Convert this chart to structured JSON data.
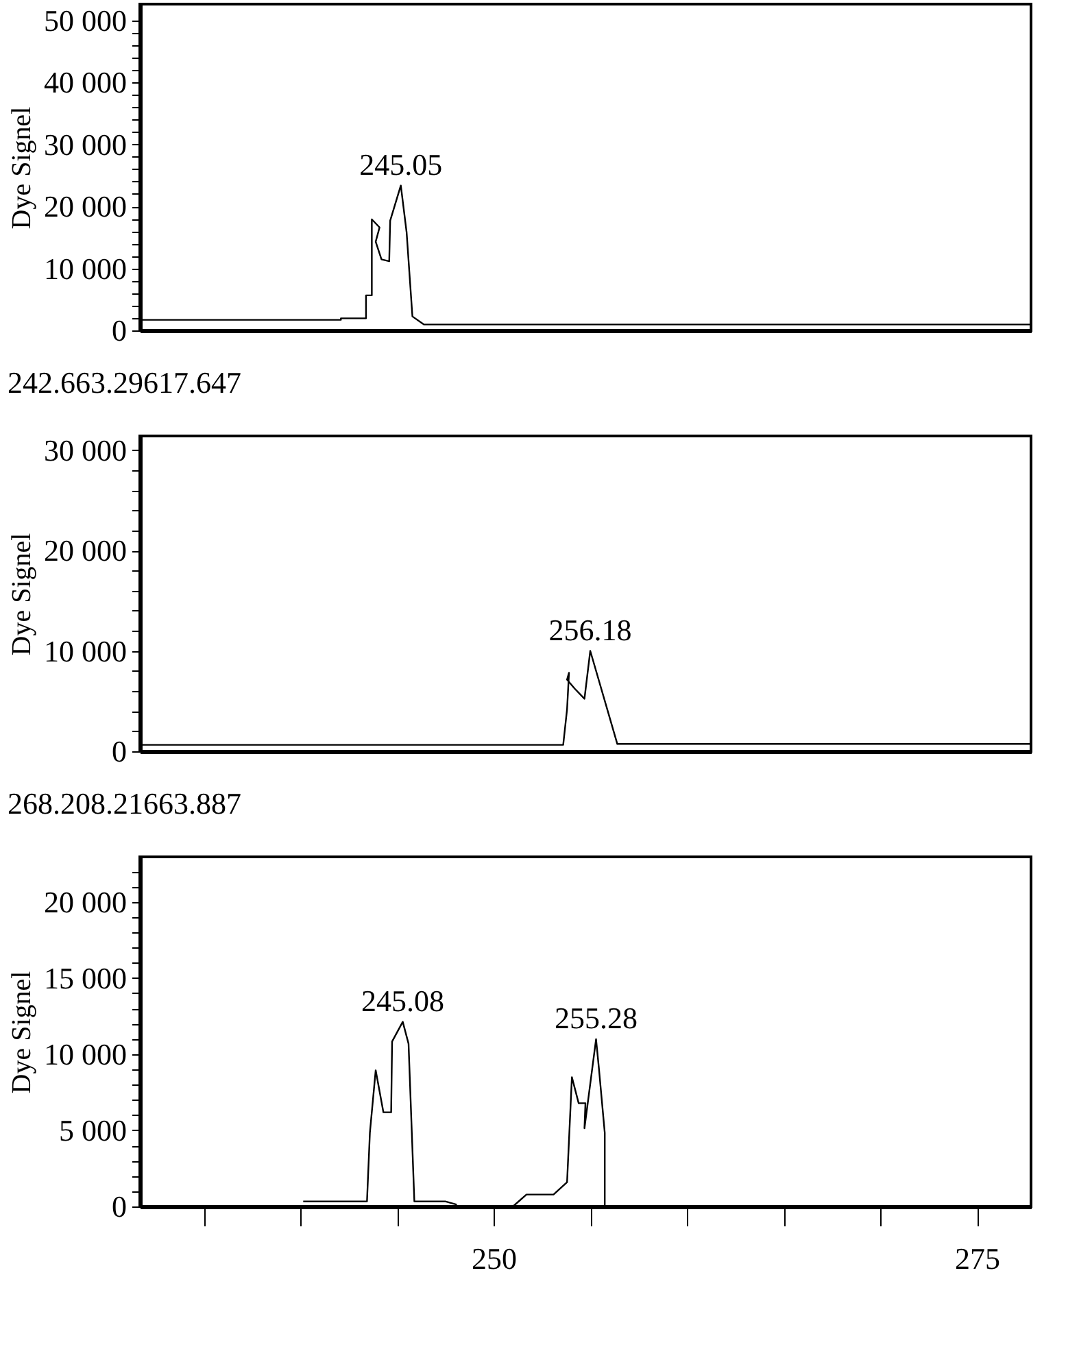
{
  "chart_data": [
    {
      "type": "line",
      "ylabel": "Dye Signel",
      "color": "#000000",
      "tick_labels": "y",
      "x": [
        231.7,
        242.1,
        242.1,
        243.4,
        243.4,
        243.7,
        243.7,
        244.1,
        243.9,
        244.2,
        244.6,
        244.65,
        245.2,
        245.5,
        245.8,
        246.4,
        277.8
      ],
      "values": [
        1700,
        1700,
        1950,
        1950,
        5650,
        5650,
        17900,
        16600,
        14300,
        11450,
        11150,
        17700,
        23350,
        15800,
        2250,
        950,
        950
      ],
      "xlim": [
        231.7,
        277.8
      ],
      "ylim": [
        0,
        52600
      ],
      "yticks": [
        0,
        {
          "value": 2000,
          "label": null
        },
        {
          "value": 4000,
          "label": null
        },
        {
          "value": 6000,
          "label": null
        },
        {
          "value": 8000,
          "label": null
        },
        {
          "value": 10000,
          "label": "10 000"
        },
        {
          "value": 12000,
          "label": null
        },
        {
          "value": 14000,
          "label": null
        },
        {
          "value": 16000,
          "label": null
        },
        {
          "value": 18000,
          "label": null
        },
        {
          "value": 20000,
          "label": "20 000"
        },
        {
          "value": 22000,
          "label": null
        },
        {
          "value": 24000,
          "label": null
        },
        {
          "value": 26000,
          "label": null
        },
        {
          "value": 28000,
          "label": null
        },
        {
          "value": 30000,
          "label": "30 000"
        },
        {
          "value": 32000,
          "label": null
        },
        {
          "value": 34000,
          "label": null
        },
        {
          "value": 36000,
          "label": null
        },
        {
          "value": 38000,
          "label": null
        },
        {
          "value": 40000,
          "label": "40 000"
        },
        {
          "value": 42000,
          "label": null
        },
        {
          "value": 44000,
          "label": null
        },
        {
          "value": 46000,
          "label": null
        },
        {
          "value": 48000,
          "label": null
        },
        {
          "value": 50000,
          "label": "50 000"
        }
      ],
      "annotations": [
        {
          "text": "245.05",
          "x": 245.2,
          "y": 23350
        }
      ]
    },
    {
      "type": "line",
      "title": "242.663.29617.647",
      "ylabel": "Dye Signel",
      "color": "#000000",
      "tick_labels": "y",
      "x": [
        231.7,
        253.6,
        253.8,
        253.9,
        253.8,
        254.2,
        254.7,
        255.0,
        256.4,
        277.8
      ],
      "values": [
        640,
        640,
        4190,
        7820,
        7140,
        6230,
        5230,
        10000,
        730,
        730
      ],
      "xlim": [
        231.7,
        277.8
      ],
      "ylim": [
        0,
        31400
      ],
      "yticks": [
        0,
        {
          "value": 2000,
          "label": null
        },
        {
          "value": 4000,
          "label": null
        },
        {
          "value": 6000,
          "label": null
        },
        {
          "value": 8000,
          "label": null
        },
        {
          "value": 10000,
          "label": "10 000"
        },
        {
          "value": 12000,
          "label": null
        },
        {
          "value": 14000,
          "label": null
        },
        {
          "value": 16000,
          "label": null
        },
        {
          "value": 18000,
          "label": null
        },
        {
          "value": 20000,
          "label": "20 000"
        },
        {
          "value": 22000,
          "label": null
        },
        {
          "value": 24000,
          "label": null
        },
        {
          "value": 26000,
          "label": null
        },
        {
          "value": 28000,
          "label": null
        },
        {
          "value": 30000,
          "label": "30 000"
        }
      ],
      "annotations": [
        {
          "text": "256.18",
          "x": 255.0,
          "y": 10000
        }
      ]
    },
    {
      "type": "line",
      "title": "268.208.21663.887",
      "ylabel": "Dye Signel",
      "color": "#000000",
      "x": [
        240.15,
        243.45,
        243.6,
        243.9,
        244.3,
        244.7,
        244.75,
        245.3,
        245.6,
        245.9,
        247.5,
        248.1,
        249.5,
        251.0,
        251.7,
        253.1,
        253.8,
        254.05,
        254.4,
        254.75,
        254.7,
        255.3,
        255.45,
        255.75,
        255.75
      ],
      "values": [
        330,
        330,
        4830,
        8940,
        6180,
        6180,
        10830,
        12120,
        10680,
        330,
        330,
        120,
        null,
        0,
        780,
        780,
        1590,
        8490,
        6780,
        6780,
        5130,
        10980,
        9030,
        4830,
        0
      ],
      "xlim": [
        231.7,
        277.8
      ],
      "ylim": [
        0,
        22950
      ],
      "xticks": [
        {
          "value": 235,
          "label": null
        },
        {
          "value": 240,
          "label": null
        },
        {
          "value": 245,
          "label": null
        },
        250,
        {
          "value": 255,
          "label": null
        },
        {
          "value": 260,
          "label": null
        },
        {
          "value": 265,
          "label": null
        },
        {
          "value": 270,
          "label": null
        },
        275
      ],
      "yticks": [
        0,
        {
          "value": 1000,
          "label": null
        },
        {
          "value": 2000,
          "label": null
        },
        {
          "value": 3000,
          "label": null
        },
        {
          "value": 4000,
          "label": null
        },
        {
          "value": 5000,
          "label": "5 000"
        },
        {
          "value": 6000,
          "label": null
        },
        {
          "value": 7000,
          "label": null
        },
        {
          "value": 8000,
          "label": null
        },
        {
          "value": 9000,
          "label": null
        },
        {
          "value": 10000,
          "label": "10 000"
        },
        {
          "value": 11000,
          "label": null
        },
        {
          "value": 12000,
          "label": null
        },
        {
          "value": 13000,
          "label": null
        },
        {
          "value": 14000,
          "label": null
        },
        {
          "value": 15000,
          "label": "15 000"
        },
        {
          "value": 16000,
          "label": null
        },
        {
          "value": 17000,
          "label": null
        },
        {
          "value": 18000,
          "label": null
        },
        {
          "value": 19000,
          "label": null
        },
        {
          "value": 20000,
          "label": "20 000"
        },
        {
          "value": 21000,
          "label": null
        },
        {
          "value": 22000,
          "label": null
        }
      ],
      "annotations": [
        {
          "text": "245.08",
          "x": 245.3,
          "y": 12120
        },
        {
          "text": "255.28",
          "x": 255.3,
          "y": 10980
        }
      ]
    }
  ]
}
